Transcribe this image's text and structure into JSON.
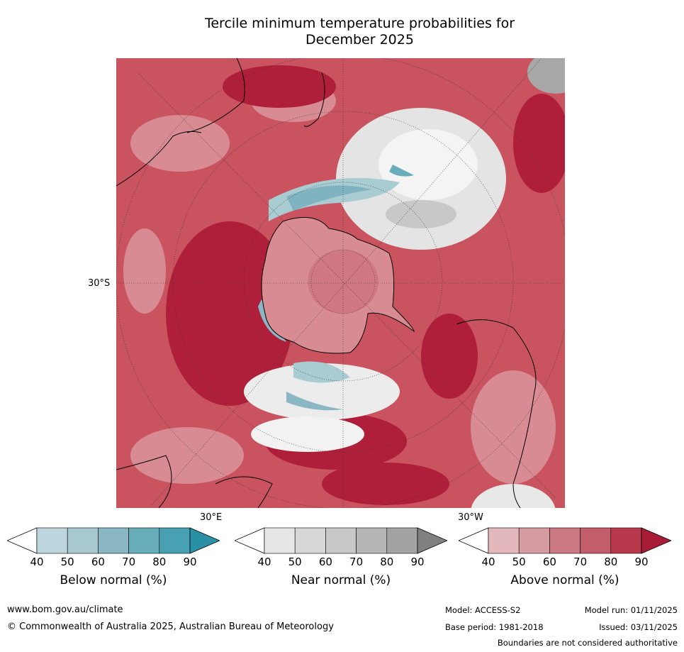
{
  "title": {
    "line1": "Tercile minimum temperature probabilities for",
    "line2": "December 2025"
  },
  "map": {
    "projection": "south-polar-stereographic",
    "lat_label": "30°S",
    "lon_labels": {
      "east": "30°E",
      "west": "30°W"
    }
  },
  "legends": [
    {
      "label": "Below normal (%)",
      "ticks": [
        "40",
        "50",
        "60",
        "70",
        "80",
        "90"
      ],
      "colors": [
        "#ffffff",
        "#bdd6dd",
        "#a8c8cf",
        "#8ab7c3",
        "#6aadba",
        "#48a1b2",
        "#2a90a6"
      ]
    },
    {
      "label": "Near normal (%)",
      "ticks": [
        "40",
        "50",
        "60",
        "70",
        "80",
        "90"
      ],
      "colors": [
        "#ffffff",
        "#e6e6e6",
        "#d7d7d7",
        "#c8c8c8",
        "#b5b5b5",
        "#a3a3a3",
        "#808080"
      ]
    },
    {
      "label": "Above normal (%)",
      "ticks": [
        "40",
        "50",
        "60",
        "70",
        "80",
        "90"
      ],
      "colors": [
        "#ffffff",
        "#e3b8bd",
        "#d69aa1",
        "#cb7a83",
        "#c35d69",
        "#b8394c",
        "#a81d35"
      ]
    }
  ],
  "footer": {
    "website": "www.bom.gov.au/climate",
    "copyright": "© Commonwealth of Australia 2025, Australian Bureau of Meteorology",
    "model": "Model: ACCESS-S2",
    "base_period": "Base period: 1981-2018",
    "model_run": "Model run: 01/11/2025",
    "issued": "Issued: 03/11/2025",
    "disclaimer": "Boundaries are not considered authoritative"
  }
}
